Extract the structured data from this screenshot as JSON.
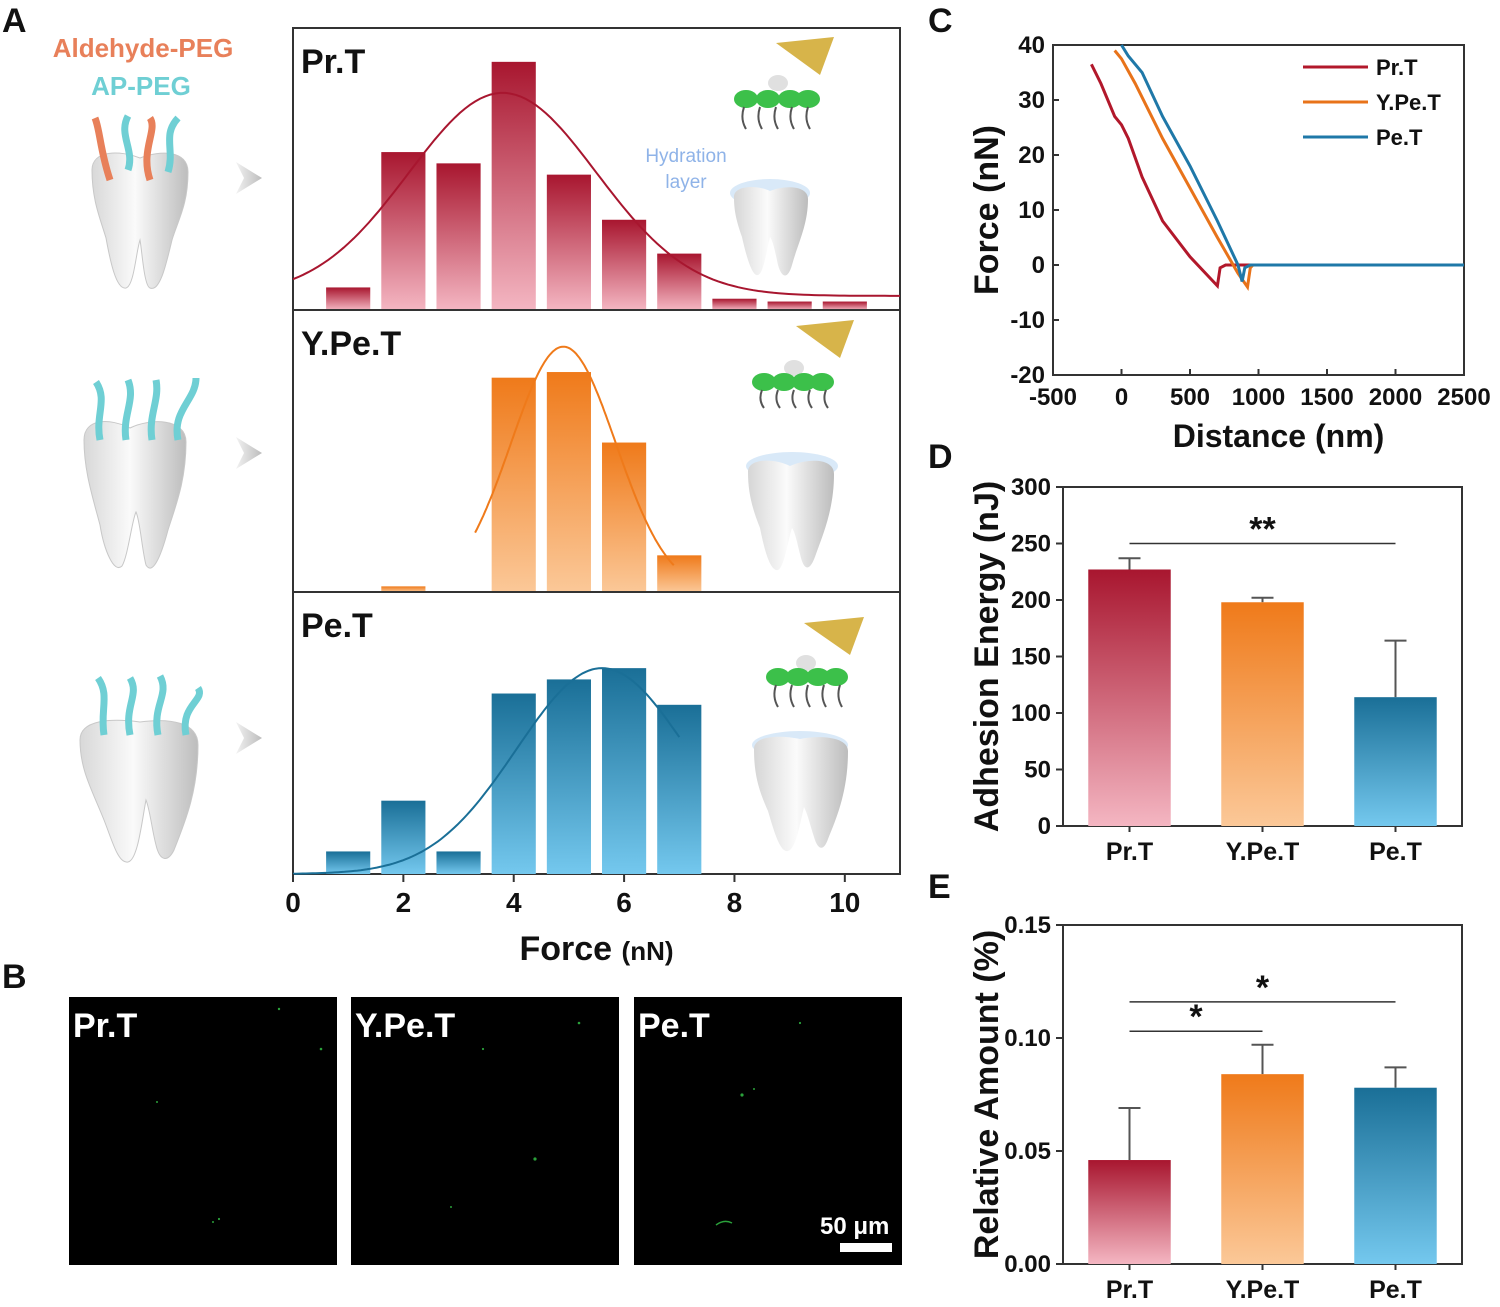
{
  "panel_labels": {
    "a": "A",
    "b": "B",
    "c": "C",
    "d": "D",
    "e": "E"
  },
  "panel_a": {
    "legend_top": "Aldehyde-PEG",
    "legend_bottom": "AP-PEG",
    "hydration_line1": "Hydration",
    "hydration_line2": "layer",
    "colors": {
      "aldehyde": "#e8805a",
      "ap_peg": "#6fcfd4",
      "hydration": "#8fb3e8"
    }
  },
  "panel_b": {
    "images": [
      {
        "label": "Pr.T"
      },
      {
        "label": "Y.Pe.T"
      },
      {
        "label": "Pe.T"
      }
    ],
    "scale_bar": "50 μm"
  },
  "chart_data": [
    {
      "id": "A",
      "type": "bar",
      "xlabel": "Force",
      "xlabel_unit": "(nN)",
      "xlim": [
        0,
        11
      ],
      "xticks": [
        0,
        2,
        4,
        6,
        8,
        10
      ],
      "panels": [
        {
          "name": "Pr.T",
          "color_dark": "#a8162f",
          "color_light": "#f4b6c2",
          "bars_x": [
            1,
            2,
            3,
            4,
            5,
            6,
            7,
            8,
            9,
            10
          ],
          "bars_y": [
            0.08,
            0.56,
            0.52,
            0.88,
            0.48,
            0.32,
            0.2,
            0.04,
            0.03,
            0.03
          ],
          "fit_mu": 3.8,
          "fit_sigma": 1.7,
          "fit_peak": 0.77,
          "fit_offset": 0.05
        },
        {
          "name": "Y.Pe.T",
          "color_dark": "#ef7a1a",
          "color_light": "#fbc898",
          "bars_x": [
            2,
            4,
            5,
            6,
            7
          ],
          "bars_y": [
            0.02,
            0.76,
            0.78,
            0.53,
            0.13
          ],
          "fit_mu": 4.9,
          "fit_sigma": 0.95,
          "fit_peak": 0.87,
          "fit_offset": 0.0,
          "fit_range": [
            3.3,
            6.9
          ]
        },
        {
          "name": "Pe.T",
          "color_dark": "#1a6f97",
          "color_light": "#74c8ee",
          "bars_x": [
            1,
            2,
            3,
            4,
            5,
            6,
            7
          ],
          "bars_y": [
            0.08,
            0.26,
            0.08,
            0.64,
            0.69,
            0.73,
            0.6
          ],
          "fit_mu": 5.6,
          "fit_sigma": 1.55,
          "fit_peak": 0.73,
          "fit_offset": 0.0,
          "fit_range": [
            0,
            7.0
          ]
        }
      ]
    },
    {
      "id": "C",
      "type": "line",
      "xlabel": "Distance (nm)",
      "ylabel": "Force (nN)",
      "xlim": [
        -500,
        2500
      ],
      "ylim": [
        -20,
        40
      ],
      "xticks": [
        -500,
        0,
        500,
        1000,
        1500,
        2000,
        2500
      ],
      "yticks": [
        -20,
        -10,
        0,
        10,
        20,
        30,
        40
      ],
      "series": [
        {
          "name": "Pr.T",
          "color": "#b2182b",
          "x": [
            -220,
            -150,
            -50,
            0,
            50,
            150,
            300,
            500,
            700,
            720,
            760,
            1000,
            1500,
            2000,
            2500
          ],
          "y": [
            36.5,
            33,
            27,
            25.5,
            23,
            16,
            8,
            1.5,
            -3.8,
            -0.5,
            0,
            0,
            0,
            0,
            0
          ]
        },
        {
          "name": "Y.Pe.T",
          "color": "#e8731a",
          "x": [
            -50,
            0,
            100,
            300,
            500,
            700,
            850,
            920,
            940,
            960,
            1000,
            1500,
            2000,
            2500
          ],
          "y": [
            39,
            37.5,
            33,
            23,
            14,
            5,
            -1.5,
            -4,
            -0.5,
            0,
            0,
            0,
            0,
            0
          ]
        },
        {
          "name": "Pe.T",
          "color": "#1f78a8",
          "x": [
            0,
            50,
            150,
            300,
            500,
            700,
            850,
            880,
            900,
            940,
            1000,
            1500,
            2000,
            2500
          ],
          "y": [
            40,
            38,
            35,
            27,
            18,
            8,
            0,
            -3,
            -0.5,
            0,
            0,
            0,
            0,
            0
          ]
        }
      ]
    },
    {
      "id": "D",
      "type": "bar",
      "ylabel": "Adhesion Energy (nJ)",
      "ylim": [
        0,
        300
      ],
      "yticks": [
        0,
        50,
        100,
        150,
        200,
        250,
        300
      ],
      "categories": [
        "Pr.T",
        "Y.Pe.T",
        "Pe.T"
      ],
      "values": [
        227,
        198,
        114
      ],
      "errors": [
        10,
        4,
        50
      ],
      "colors_dark": [
        "#a8162f",
        "#ef7a1a",
        "#1a6f97"
      ],
      "colors_light": [
        "#f4b6c2",
        "#fbc898",
        "#74c8ee"
      ],
      "significance": [
        {
          "from": 0,
          "to": 2,
          "label": "**",
          "y": 250
        }
      ]
    },
    {
      "id": "E",
      "type": "bar",
      "ylabel": "Relative Amount (%)",
      "ylim": [
        0,
        0.15
      ],
      "yticks": [
        0.0,
        0.05,
        0.1,
        0.15
      ],
      "ytick_labels": [
        "0.00",
        "0.05",
        "0.10",
        "0.15"
      ],
      "categories": [
        "Pr.T",
        "Y.Pe.T",
        "Pe.T"
      ],
      "values": [
        0.046,
        0.084,
        0.078
      ],
      "errors": [
        0.023,
        0.013,
        0.009
      ],
      "colors_dark": [
        "#a8162f",
        "#ef7a1a",
        "#1a6f97"
      ],
      "colors_light": [
        "#f4b6c2",
        "#fbc898",
        "#74c8ee"
      ],
      "significance": [
        {
          "from": 0,
          "to": 1,
          "label": "*",
          "y": 0.103
        },
        {
          "from": 0,
          "to": 2,
          "label": "*",
          "y": 0.116
        }
      ]
    }
  ]
}
